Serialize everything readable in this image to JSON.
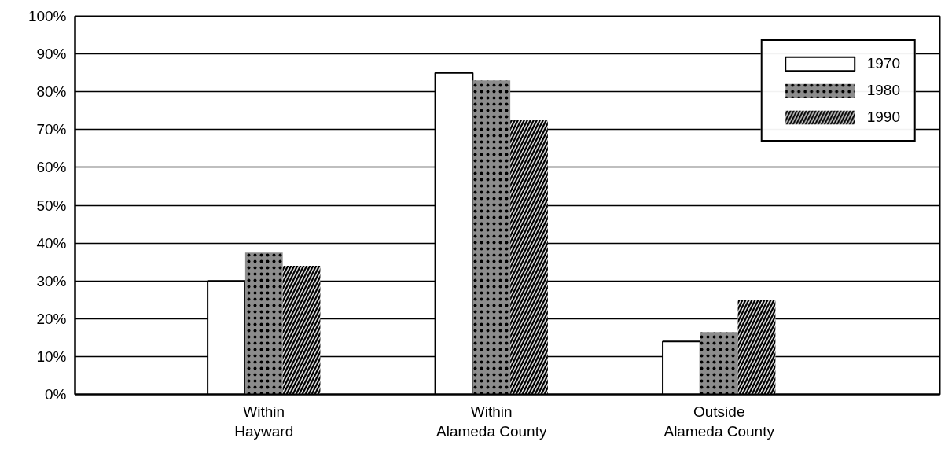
{
  "chart_data": {
    "type": "bar",
    "categories": [
      "Within Hayward",
      "Within Alameda County",
      "Outside Alameda County"
    ],
    "series": [
      {
        "name": "1970",
        "color": "#ffffff",
        "values": [
          30,
          85,
          14
        ]
      },
      {
        "name": "1980",
        "color": "#8c8c8c",
        "values": [
          37.5,
          83,
          16.5
        ]
      },
      {
        "name": "1990",
        "color": "#dcdcdc",
        "values": [
          34,
          72.5,
          25
        ]
      }
    ],
    "ylim": [
      0,
      100
    ],
    "yticks": [
      {
        "value": 0,
        "label": "0%"
      },
      {
        "value": 10,
        "label": "10%"
      },
      {
        "value": 20,
        "label": "20%"
      },
      {
        "value": 30,
        "label": "30%"
      },
      {
        "value": 40,
        "label": "40%"
      },
      {
        "value": 50,
        "label": "50%"
      },
      {
        "value": 60,
        "label": "60%"
      },
      {
        "value": 70,
        "label": "70%"
      },
      {
        "value": 80,
        "label": "80%"
      },
      {
        "value": 90,
        "label": "90%"
      },
      {
        "value": 100,
        "label": "100%"
      }
    ],
    "grid": "y",
    "legend": "top right"
  }
}
